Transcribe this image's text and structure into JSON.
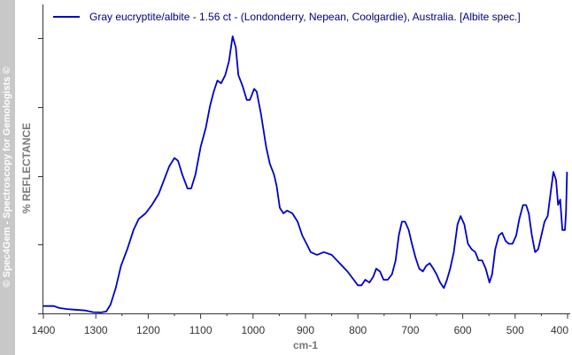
{
  "watermark": "© Spec4Gem - Spectroscopy for Gemologists ©",
  "chart_data": {
    "type": "line",
    "title": "",
    "xlabel": "cm-1",
    "ylabel": "% REFLECTANCE",
    "xlim": [
      1400,
      400
    ],
    "x_reversed": true,
    "ylim": [
      0,
      100
    ],
    "x_ticks": [
      1400,
      1300,
      1200,
      1100,
      1000,
      900,
      800,
      700,
      600,
      500,
      400
    ],
    "y_ticks_labeled": false,
    "grid": false,
    "legend": "top",
    "colors": {
      "series": "#0000cc",
      "axis": "#333333"
    },
    "series": [
      {
        "name": "Gray eucryptite/albite - 1.56 ct - (Londonderry, Nepean, Coolgardie), Australia. [Albite spec.]",
        "points": [
          [
            1400,
            2.5
          ],
          [
            1380,
            2.5
          ],
          [
            1370,
            1.8
          ],
          [
            1355,
            1.4
          ],
          [
            1340,
            1.2
          ],
          [
            1320,
            0.9
          ],
          [
            1305,
            0.3
          ],
          [
            1290,
            0.2
          ],
          [
            1280,
            0.5
          ],
          [
            1272,
            3
          ],
          [
            1262,
            9
          ],
          [
            1252,
            17
          ],
          [
            1240,
            23
          ],
          [
            1228,
            30
          ],
          [
            1218,
            34
          ],
          [
            1205,
            36
          ],
          [
            1193,
            39
          ],
          [
            1180,
            43
          ],
          [
            1170,
            48
          ],
          [
            1160,
            53
          ],
          [
            1150,
            56
          ],
          [
            1143,
            55
          ],
          [
            1135,
            50
          ],
          [
            1125,
            45
          ],
          [
            1118,
            45
          ],
          [
            1110,
            50
          ],
          [
            1100,
            60
          ],
          [
            1090,
            67
          ],
          [
            1082,
            75
          ],
          [
            1075,
            80
          ],
          [
            1068,
            84
          ],
          [
            1061,
            83
          ],
          [
            1053,
            86
          ],
          [
            1046,
            91
          ],
          [
            1039,
            100
          ],
          [
            1033,
            96
          ],
          [
            1028,
            86
          ],
          [
            1020,
            82
          ],
          [
            1012,
            77
          ],
          [
            1006,
            77
          ],
          [
            998,
            81
          ],
          [
            993,
            80
          ],
          [
            985,
            72
          ],
          [
            975,
            60
          ],
          [
            968,
            54
          ],
          [
            960,
            50
          ],
          [
            955,
            46
          ],
          [
            949,
            38
          ],
          [
            942,
            36
          ],
          [
            935,
            37
          ],
          [
            925,
            36
          ],
          [
            915,
            33
          ],
          [
            906,
            28
          ],
          [
            898,
            25
          ],
          [
            890,
            22
          ],
          [
            878,
            21
          ],
          [
            865,
            22
          ],
          [
            850,
            21
          ],
          [
            835,
            18
          ],
          [
            820,
            15
          ],
          [
            808,
            12
          ],
          [
            800,
            10
          ],
          [
            793,
            10
          ],
          [
            786,
            12
          ],
          [
            778,
            11
          ],
          [
            771,
            13
          ],
          [
            765,
            16
          ],
          [
            758,
            15
          ],
          [
            751,
            12
          ],
          [
            743,
            12
          ],
          [
            735,
            14
          ],
          [
            728,
            19
          ],
          [
            722,
            28
          ],
          [
            716,
            33
          ],
          [
            710,
            33
          ],
          [
            703,
            30
          ],
          [
            697,
            25
          ],
          [
            690,
            20
          ],
          [
            683,
            16
          ],
          [
            676,
            15
          ],
          [
            670,
            17
          ],
          [
            663,
            18
          ],
          [
            656,
            16
          ],
          [
            650,
            14
          ],
          [
            643,
            11
          ],
          [
            636,
            9
          ],
          [
            630,
            12
          ],
          [
            624,
            16
          ],
          [
            617,
            22
          ],
          [
            610,
            32
          ],
          [
            604,
            35
          ],
          [
            597,
            32
          ],
          [
            590,
            25
          ],
          [
            583,
            23
          ],
          [
            576,
            22
          ],
          [
            570,
            19
          ],
          [
            563,
            19
          ],
          [
            556,
            16
          ],
          [
            549,
            11
          ],
          [
            544,
            14
          ],
          [
            538,
            23
          ],
          [
            531,
            28
          ],
          [
            525,
            29
          ],
          [
            518,
            26
          ],
          [
            512,
            25
          ],
          [
            505,
            25
          ],
          [
            498,
            28
          ],
          [
            492,
            34
          ],
          [
            485,
            39
          ],
          [
            479,
            39
          ],
          [
            474,
            36
          ],
          [
            468,
            28
          ],
          [
            462,
            22
          ],
          [
            456,
            23
          ],
          [
            450,
            28
          ],
          [
            444,
            33
          ],
          [
            438,
            35
          ],
          [
            432,
            44
          ],
          [
            427,
            51
          ],
          [
            422,
            48
          ],
          [
            418,
            39
          ],
          [
            414,
            41
          ],
          [
            410,
            30
          ],
          [
            405,
            30
          ],
          [
            403,
            36
          ],
          [
            401,
            51
          ]
        ]
      }
    ]
  }
}
